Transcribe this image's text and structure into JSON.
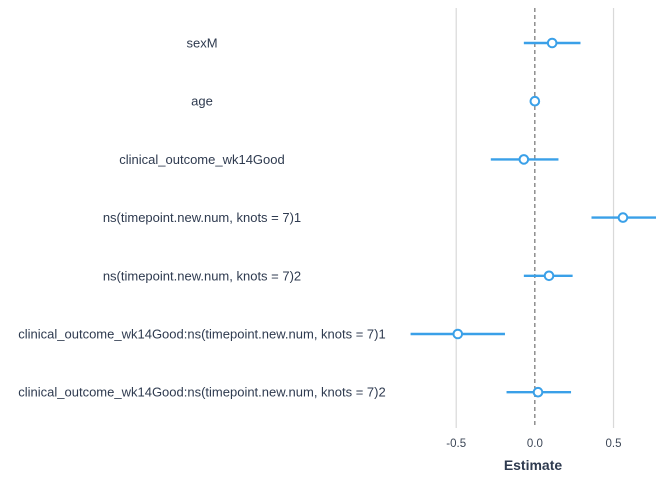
{
  "chart_data": {
    "type": "scatter",
    "subtype": "coefficient-plot",
    "title": "",
    "xlabel": "Estimate",
    "ylabel": "",
    "xlim": [
      -0.8,
      0.77
    ],
    "x_ticks": [
      -0.5,
      0.0,
      0.5
    ],
    "x_tick_labels": [
      "-0.5",
      "0.0",
      "0.5"
    ],
    "reference_line": 0,
    "grid": "vertical major",
    "color": "#3aa0e8",
    "terms": [
      {
        "label": "sexM",
        "estimate": 0.11,
        "low": -0.07,
        "high": 0.29
      },
      {
        "label": "age",
        "estimate": 0.0,
        "low": -0.01,
        "high": 0.01
      },
      {
        "label": "clinical_outcome_wk14Good",
        "estimate": -0.07,
        "low": -0.28,
        "high": 0.15
      },
      {
        "label": "ns(timepoint.new.num, knots = 7)1",
        "estimate": 0.56,
        "low": 0.36,
        "high": 0.77
      },
      {
        "label": "ns(timepoint.new.num, knots = 7)2",
        "estimate": 0.09,
        "low": -0.07,
        "high": 0.24
      },
      {
        "label": "clinical_outcome_wk14Good:ns(timepoint.new.num, knots = 7)1",
        "estimate": -0.49,
        "low": -0.79,
        "high": -0.19
      },
      {
        "label": "clinical_outcome_wk14Good:ns(timepoint.new.num, knots = 7)2",
        "estimate": 0.02,
        "low": -0.18,
        "high": 0.23
      }
    ]
  }
}
